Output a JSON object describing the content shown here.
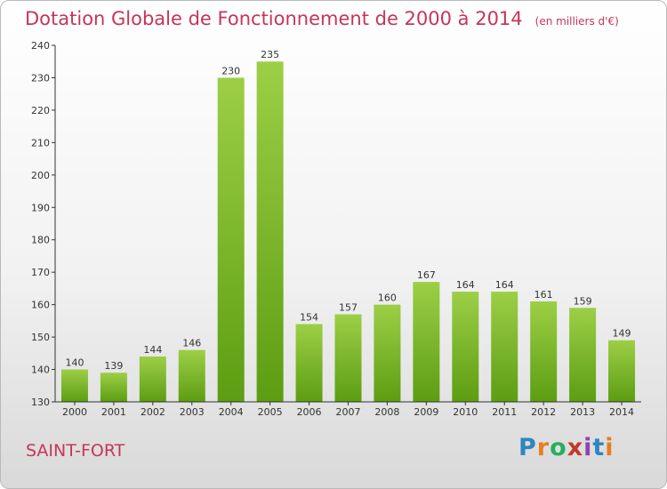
{
  "header": {
    "title": "Dotation Globale de Fonctionnement de 2000 à 2014",
    "unit": "(en milliers d'€)"
  },
  "footer": {
    "town": "SAINT-FORT",
    "logo": "Proxiti"
  },
  "colors": {
    "bar_top": "#9ccf46",
    "bar_bottom": "#5c9d12",
    "title": "#c6355a"
  },
  "chart_data": {
    "type": "bar",
    "title": "Dotation Globale de Fonctionnement de 2000 à 2014",
    "subtitle": "(en milliers d'€)",
    "xlabel": "",
    "ylabel": "",
    "ylim": [
      130,
      240
    ],
    "yticks": [
      130,
      140,
      150,
      160,
      170,
      180,
      190,
      200,
      210,
      220,
      230,
      240
    ],
    "grid": false,
    "categories": [
      "2000",
      "2001",
      "2002",
      "2003",
      "2004",
      "2005",
      "2006",
      "2007",
      "2008",
      "2009",
      "2010",
      "2011",
      "2012",
      "2013",
      "2014"
    ],
    "values": [
      140,
      139,
      144,
      146,
      230,
      235,
      154,
      157,
      160,
      167,
      164,
      164,
      161,
      159,
      149
    ]
  }
}
